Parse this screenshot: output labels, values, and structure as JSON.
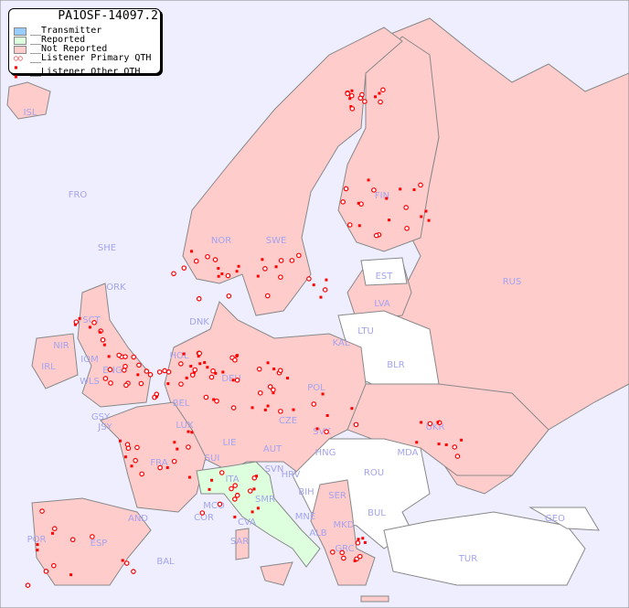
{
  "legend": {
    "title": "PA1OSF-14097.2",
    "items": [
      {
        "label": "__Transmitter",
        "color": "#99ccff"
      },
      {
        "label": "__Reported",
        "color": "#ddffdd"
      },
      {
        "label": "__Not Reported",
        "color": "#ffcccc"
      },
      {
        "label": "__Listener Primary QTH",
        "marker": "circle"
      },
      {
        "label": "__Listener Other QTH",
        "marker": "square"
      }
    ]
  },
  "colors": {
    "sea": "#eeeeff",
    "not_reported": "#ffcccc",
    "reported": "#ddffdd",
    "no_data": "#ffffff",
    "marker": "#ff0000",
    "label": "#a4a4ee",
    "border": "#888888"
  },
  "countries": [
    "ISL",
    "FRO",
    "SHE",
    "ORK",
    "NOR",
    "SWE",
    "FIN",
    "EST",
    "LVA",
    "RUS",
    "LTU",
    "KAL",
    "BLR",
    "POL",
    "DNK",
    "HOL",
    "DEU",
    "BEL",
    "LUX",
    "CZE",
    "SVK",
    "AUT",
    "HNG",
    "UKR",
    "MDA",
    "ROU",
    "LIE",
    "SUI",
    "FRA",
    "SVN",
    "HRV",
    "BIH",
    "SER",
    "ITA",
    "SMR",
    "MCO",
    "COR",
    "CVA",
    "MNE",
    "ALB",
    "MKD",
    "BUL",
    "GEO",
    "AND",
    "ESP",
    "POR",
    "BAL",
    "SAR",
    "GRC",
    "TUR",
    "IRL",
    "GSY",
    "JSY",
    "WLS",
    "IOM",
    "ENG",
    "SCT",
    "NIR"
  ],
  "reported_countries": [
    "ITA"
  ]
}
